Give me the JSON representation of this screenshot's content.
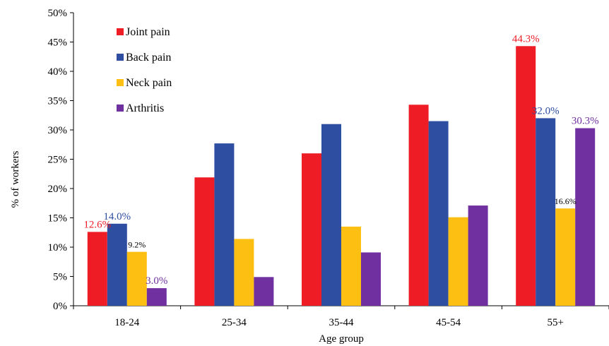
{
  "chart_data": {
    "type": "bar",
    "xlabel": "Age group",
    "ylabel": "% of workers",
    "ylim": [
      0,
      50
    ],
    "ytick_step": 5,
    "y_tick_suffix": "%",
    "categories": [
      "18-24",
      "25-34",
      "35-44",
      "45-54",
      "55+"
    ],
    "series": [
      {
        "name": "Joint pain",
        "color": "#ee1c25",
        "values": [
          12.6,
          21.9,
          26.0,
          34.3,
          44.3
        ]
      },
      {
        "name": "Back pain",
        "color": "#2e4ea2",
        "values": [
          14.0,
          27.7,
          31.0,
          31.5,
          32.0
        ]
      },
      {
        "name": "Neck pain",
        "color": "#fdbf12",
        "values": [
          9.2,
          11.4,
          13.5,
          15.1,
          16.6
        ]
      },
      {
        "name": "Arthritis",
        "color": "#7030a0",
        "values": [
          3.0,
          4.9,
          9.1,
          17.1,
          30.3
        ]
      }
    ],
    "data_labels": [
      {
        "series": 0,
        "category": 0,
        "text": "12.6%",
        "color": "#ee1c25"
      },
      {
        "series": 1,
        "category": 0,
        "text": "14.0%",
        "color": "#2e4ea2"
      },
      {
        "series": 2,
        "category": 0,
        "text": "9.2%",
        "color": "#000000",
        "small": true
      },
      {
        "series": 3,
        "category": 0,
        "text": "3.0%",
        "color": "#7030a0"
      },
      {
        "series": 0,
        "category": 4,
        "text": "44.3%",
        "color": "#ee1c25"
      },
      {
        "series": 1,
        "category": 4,
        "text": "32.0%",
        "color": "#2e4ea2"
      },
      {
        "series": 2,
        "category": 4,
        "text": "16.6%",
        "color": "#000000",
        "small": true
      },
      {
        "series": 3,
        "category": 4,
        "text": "30.3%",
        "color": "#7030a0"
      }
    ],
    "legend": {
      "position": "top-left"
    },
    "grid": false
  }
}
